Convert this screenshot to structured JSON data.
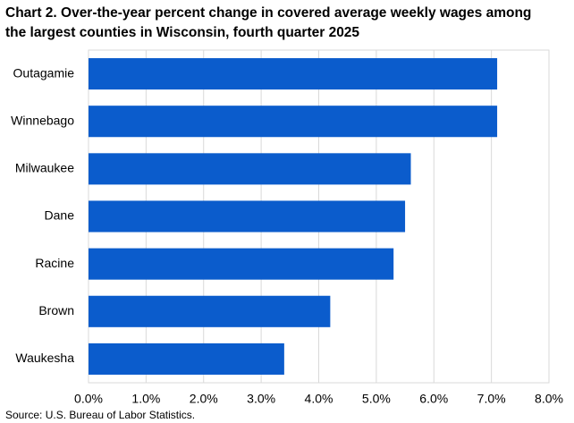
{
  "chart_data": {
    "type": "bar",
    "orientation": "horizontal",
    "title": "Chart 2. Over-the-year percent change in covered average weekly wages among the largest counties in Wisconsin, fourth quarter 2025",
    "categories": [
      "Outagamie",
      "Winnebago",
      "Milwaukee",
      "Dane",
      "Racine",
      "Brown",
      "Waukesha"
    ],
    "values": [
      7.1,
      7.1,
      5.6,
      5.5,
      5.3,
      4.2,
      3.4
    ],
    "color": "#0b5ccc",
    "xlim": [
      0,
      8
    ],
    "xticks": [
      {
        "value": 0,
        "label": "0.0%"
      },
      {
        "value": 1,
        "label": "1.0%"
      },
      {
        "value": 2,
        "label": "2.0%"
      },
      {
        "value": 3,
        "label": "3.0%"
      },
      {
        "value": 4,
        "label": "4.0%"
      },
      {
        "value": 5,
        "label": "5.0%"
      },
      {
        "value": 6,
        "label": "6.0%"
      },
      {
        "value": 7,
        "label": "7.0%"
      },
      {
        "value": 8,
        "label": "8.0%"
      }
    ],
    "grid": true,
    "source": "Source: U.S. Bureau of Labor Statistics."
  }
}
